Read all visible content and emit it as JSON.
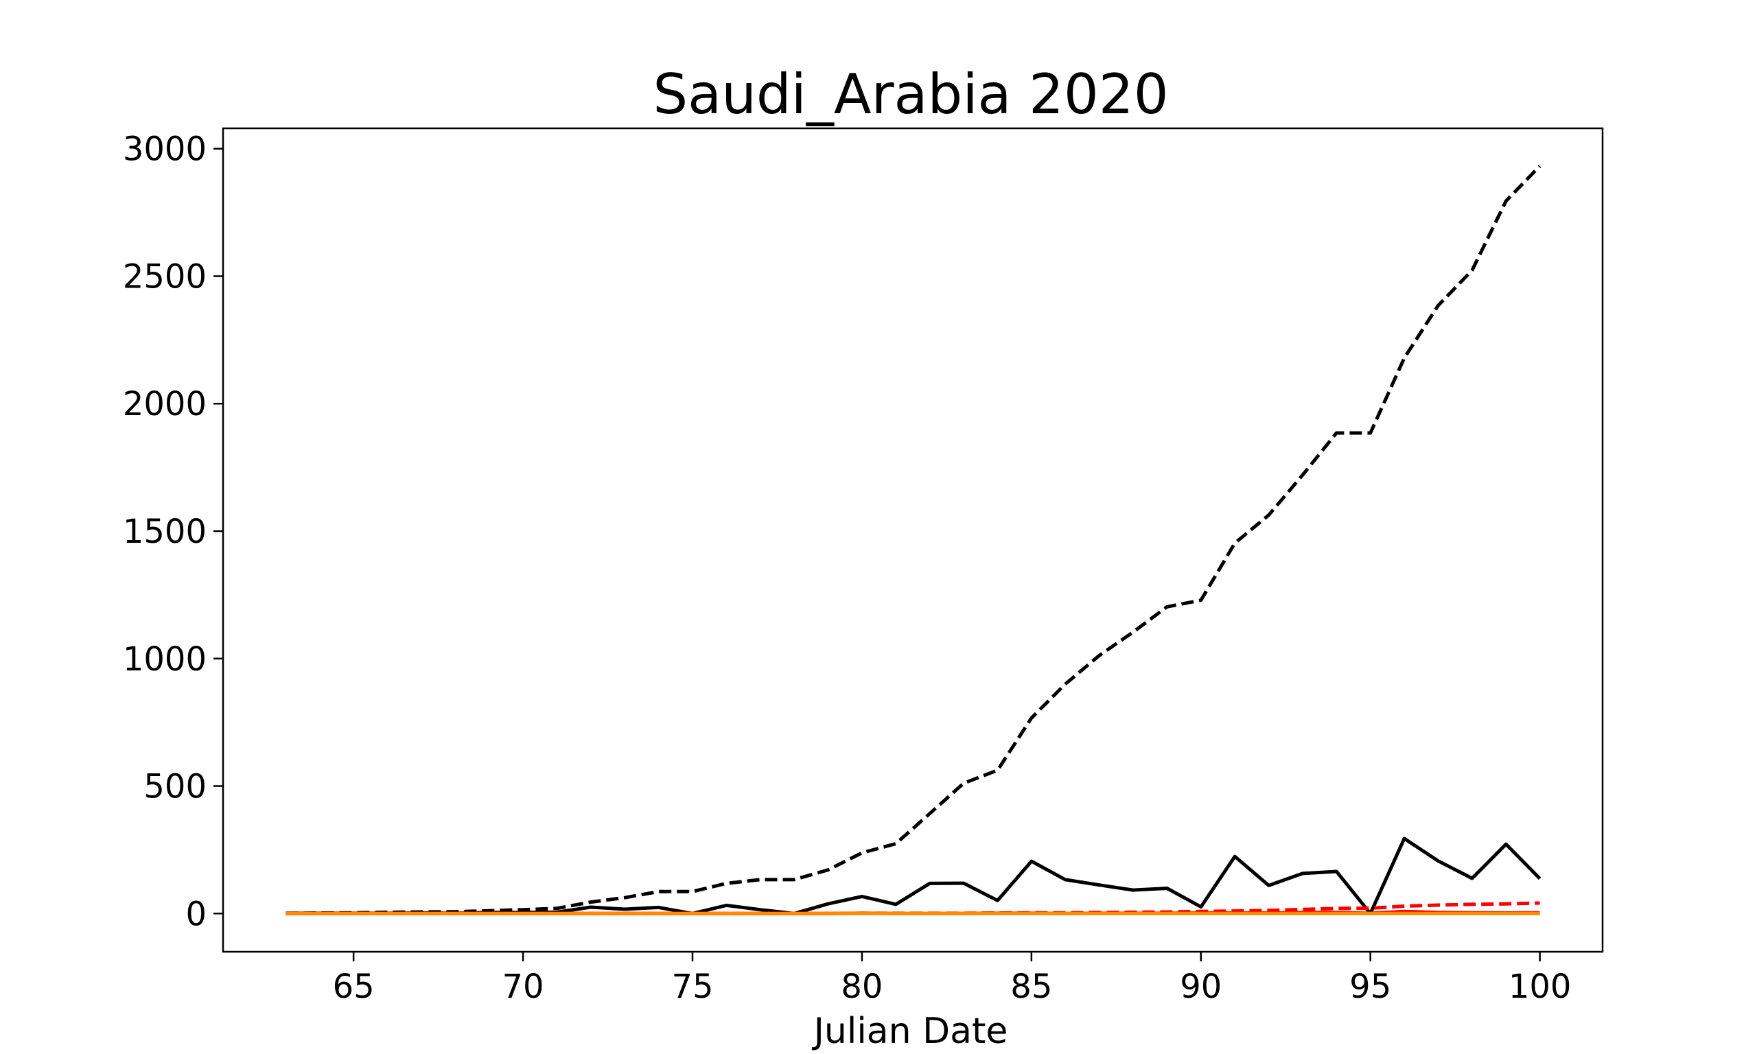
{
  "chart_data": {
    "type": "line",
    "title": "Saudi_Arabia 2020",
    "xlabel": "Julian Date",
    "ylabel": "",
    "xlim": [
      61.15,
      101.85
    ],
    "ylim": [
      -150,
      3080
    ],
    "xticks": [
      65,
      70,
      75,
      80,
      85,
      90,
      95,
      100
    ],
    "yticks": [
      0,
      500,
      1000,
      1500,
      2000,
      2500,
      3000
    ],
    "grid": false,
    "legend": "none",
    "x": [
      63,
      64,
      65,
      66,
      67,
      68,
      69,
      70,
      71,
      72,
      73,
      74,
      75,
      76,
      77,
      78,
      79,
      80,
      81,
      82,
      83,
      84,
      85,
      86,
      87,
      88,
      89,
      90,
      91,
      92,
      93,
      94,
      95,
      96,
      97,
      98,
      99,
      100
    ],
    "series": [
      {
        "color": "#000000",
        "dash": "dashed",
        "values": [
          1,
          2,
          3,
          5,
          6,
          7,
          11,
          15,
          20,
          45,
          62,
          86,
          86,
          118,
          133,
          133,
          171,
          238,
          274,
          392,
          511,
          562,
          767,
          900,
          1012,
          1104,
          1203,
          1229,
          1453,
          1563,
          1720,
          1885,
          1885,
          2179,
          2385,
          2523,
          2795,
          2932
        ]
      },
      {
        "color": "#000000",
        "dash": "solid",
        "values": [
          1,
          1,
          1,
          1,
          2,
          1,
          4,
          4,
          5,
          25,
          17,
          24,
          0,
          32,
          15,
          0,
          38,
          67,
          36,
          118,
          119,
          51,
          205,
          133,
          112,
          92,
          99,
          26,
          224,
          110,
          157,
          165,
          0,
          294,
          206,
          138,
          272,
          137
        ]
      },
      {
        "color": "#ff0000",
        "dash": "dashed",
        "values": [
          0,
          0,
          0,
          0,
          0,
          0,
          0,
          0,
          0,
          0,
          0,
          0,
          0,
          0,
          0,
          0,
          0,
          1,
          1,
          1,
          1,
          2,
          3,
          3,
          4,
          5,
          6,
          8,
          10,
          12,
          16,
          20,
          21,
          29,
          33,
          36,
          38,
          41
        ]
      },
      {
        "color": "#ff0000",
        "dash": "solid",
        "values": [
          0,
          0,
          0,
          0,
          0,
          0,
          0,
          0,
          0,
          0,
          0,
          0,
          0,
          0,
          0,
          0,
          0,
          1,
          0,
          0,
          0,
          1,
          1,
          0,
          1,
          1,
          1,
          2,
          2,
          2,
          4,
          4,
          1,
          8,
          4,
          3,
          2,
          3
        ]
      },
      {
        "color": "#ff8c00",
        "dash": "solid",
        "values": [
          0,
          0,
          0,
          0,
          0,
          0,
          0,
          0,
          0,
          0,
          0,
          0,
          0,
          0,
          0,
          0,
          0,
          0,
          0,
          0,
          0,
          0,
          0,
          0,
          0,
          0,
          0,
          0,
          0,
          0,
          0,
          0,
          0,
          0,
          0,
          0,
          0,
          0
        ]
      }
    ]
  }
}
